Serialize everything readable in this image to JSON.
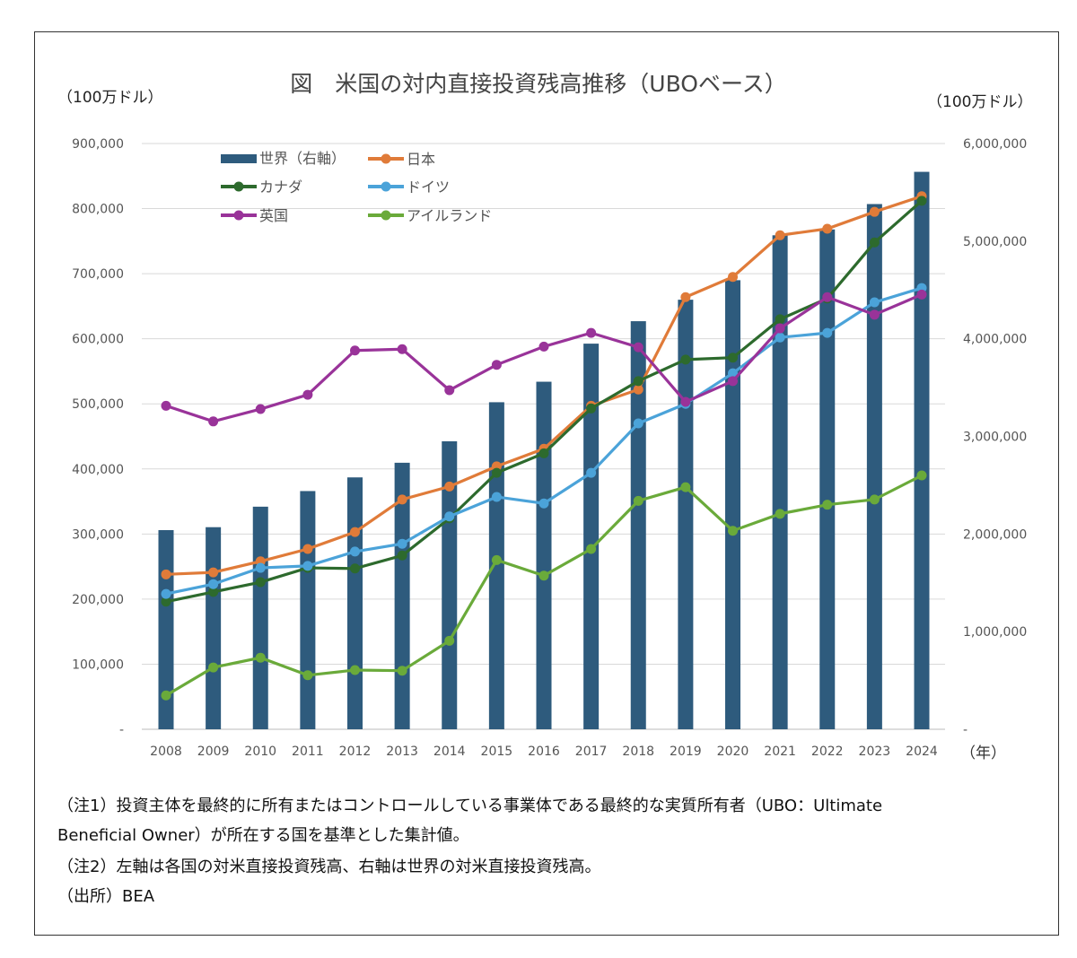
{
  "chart_data": {
    "type": "bar+line",
    "title": "図　米国の対内直接投資残高推移（UBOベース）",
    "ylabel_left": "（100万ドル）",
    "ylabel_right": "（100万ドル）",
    "xlabel": "（年）",
    "categories": [
      "2008",
      "2009",
      "2010",
      "2011",
      "2012",
      "2013",
      "2014",
      "2015",
      "2016",
      "2017",
      "2018",
      "2019",
      "2020",
      "2021",
      "2022",
      "2023",
      "2024"
    ],
    "ylim_left": [
      0,
      900000
    ],
    "ylim_right": [
      0,
      6000000
    ],
    "yticks_left": [
      "-",
      "100,000",
      "200,000",
      "300,000",
      "400,000",
      "500,000",
      "600,000",
      "700,000",
      "800,000",
      "900,000"
    ],
    "yticks_right": [
      "-",
      "1,000,000",
      "2,000,000",
      "3,000,000",
      "4,000,000",
      "5,000,000",
      "6,000,000"
    ],
    "grid": true,
    "legend_placement": "top-left",
    "bar_series": {
      "name": "世界（右軸）",
      "axis": "right",
      "color": "#2E5B7D",
      "values": [
        2040000,
        2070000,
        2280000,
        2440000,
        2580000,
        2730000,
        2950000,
        3350000,
        3560000,
        3950000,
        4180000,
        4400000,
        4600000,
        5060000,
        5120000,
        5380000,
        5710000
      ]
    },
    "series": [
      {
        "name": "日本",
        "color": "#E07B39",
        "values": [
          238000,
          241000,
          258000,
          277000,
          303000,
          353000,
          373000,
          404000,
          431000,
          497000,
          522000,
          664000,
          695000,
          759000,
          769000,
          795000,
          819000
        ]
      },
      {
        "name": "カナダ",
        "color": "#2D6A2D",
        "values": [
          196000,
          211000,
          226000,
          248000,
          247000,
          267000,
          324000,
          394000,
          424000,
          493000,
          535000,
          568000,
          571000,
          630000,
          662000,
          748000,
          812000
        ]
      },
      {
        "name": "ドイツ",
        "color": "#4BA3D9",
        "values": [
          208000,
          223000,
          248000,
          251000,
          273000,
          285000,
          327000,
          357000,
          347000,
          394000,
          470000,
          500000,
          547000,
          602000,
          609000,
          656000,
          678000
        ]
      },
      {
        "name": "英国",
        "color": "#993399",
        "values": [
          497000,
          473000,
          492000,
          514000,
          582000,
          584000,
          521000,
          560000,
          588000,
          609000,
          587000,
          503000,
          535000,
          616000,
          664000,
          637000,
          668000
        ]
      },
      {
        "name": "アイルランド",
        "color": "#6AAA3A",
        "values": [
          52000,
          95000,
          110000,
          83000,
          91000,
          90000,
          136000,
          260000,
          236000,
          277000,
          351000,
          372000,
          305000,
          331000,
          345000,
          353000,
          390000
        ]
      }
    ]
  },
  "notes": [
    "（注1）投資主体を最終的に所有またはコントロールしている事業体である最終的な実質所有者（UBO：Ultimate",
    "Beneficial Owner）が所在する国を基準とした集計値。",
    "（注2）左軸は各国の対米直接投資残高、右軸は世界の対米直接投資残高。",
    "（出所）BEA"
  ]
}
